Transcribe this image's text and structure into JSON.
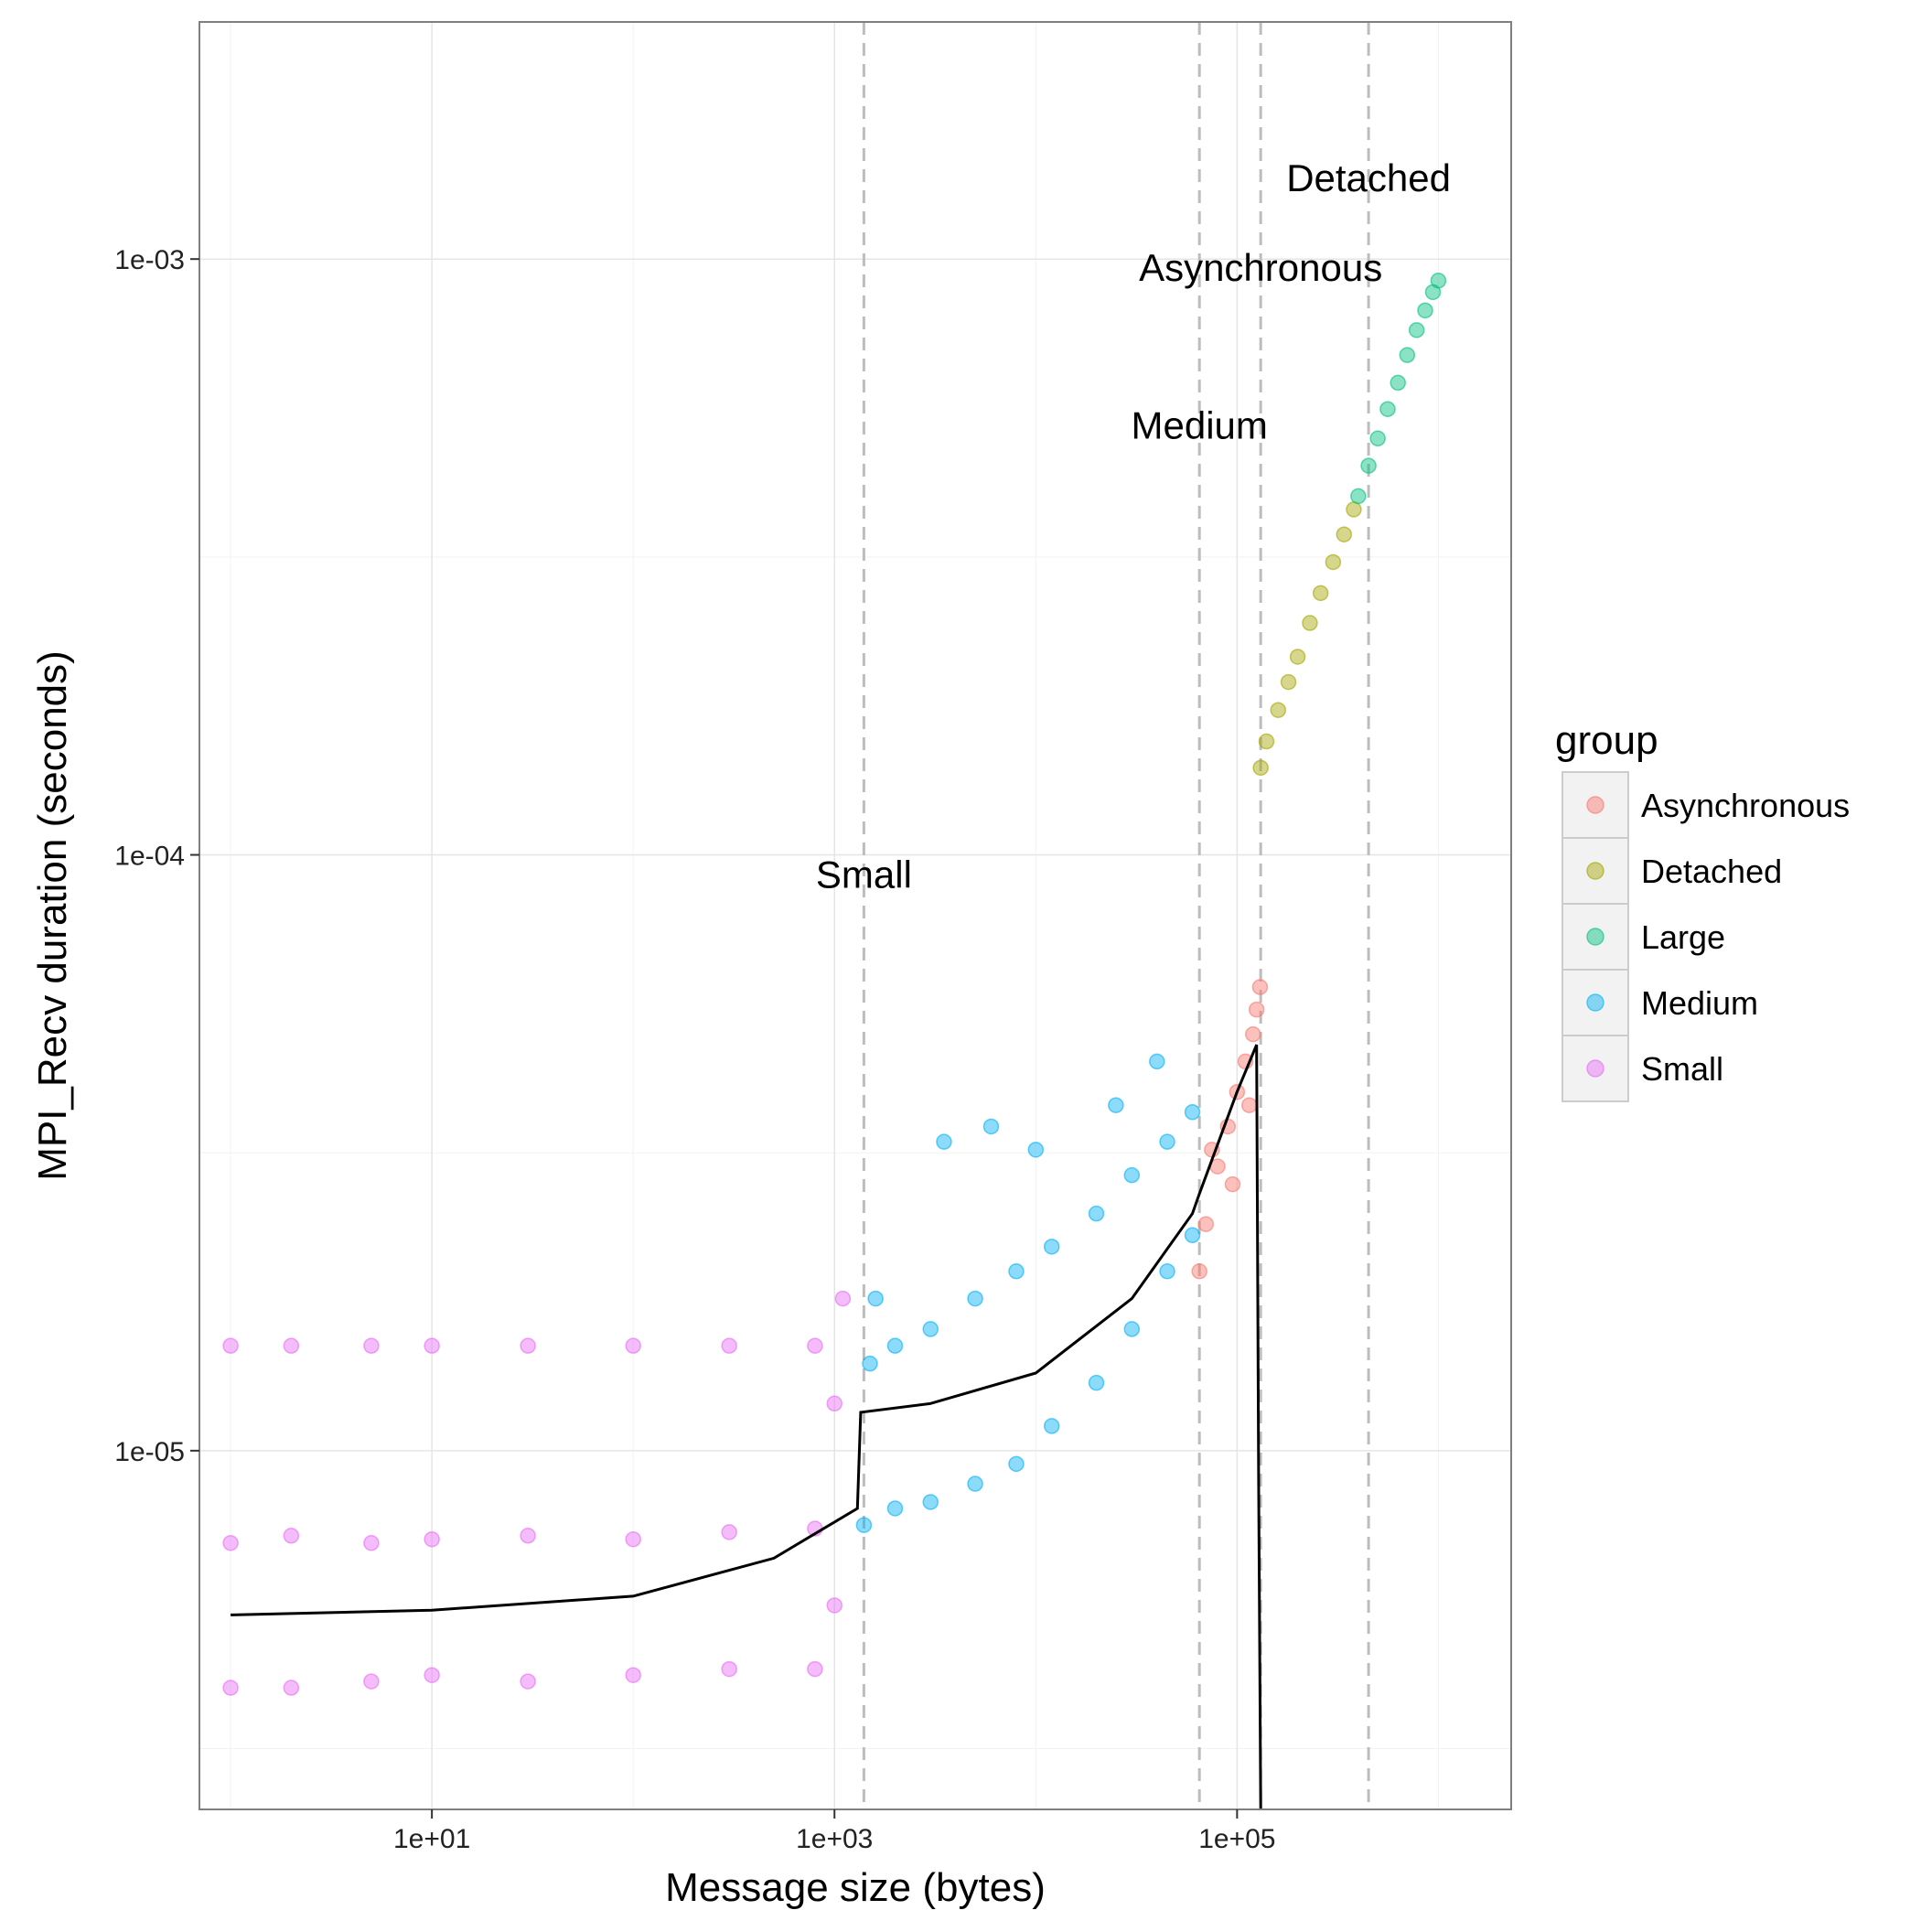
{
  "chart_data": {
    "type": "scatter",
    "x_scale": "log10",
    "y_scale": "log10",
    "xlim": [
      0.7,
      2300000
    ],
    "ylim": [
      2.5e-06,
      0.0025
    ],
    "xlabel": "Message size (bytes)",
    "ylabel": "MPI_Recv duration (seconds)",
    "x_ticks": [
      {
        "value": 10,
        "label": "1e+01"
      },
      {
        "value": 1000,
        "label": "1e+03"
      },
      {
        "value": 100000,
        "label": "1e+05"
      }
    ],
    "y_ticks": [
      {
        "value": 1e-05,
        "label": "1e-05"
      },
      {
        "value": 0.0001,
        "label": "1e-04"
      },
      {
        "value": 0.001,
        "label": "1e-03"
      }
    ],
    "grid": true,
    "legend": {
      "title": "group",
      "position": "right",
      "entries": [
        "Asynchronous",
        "Detached",
        "Large",
        "Medium",
        "Small"
      ]
    },
    "series": [
      {
        "name": "Asynchronous",
        "color": "#F8766D",
        "points": [
          [
            65000,
            2e-05
          ],
          [
            70000,
            2.4e-05
          ],
          [
            80000,
            3e-05
          ],
          [
            90000,
            3.5e-05
          ],
          [
            100000,
            4e-05
          ],
          [
            110000,
            4.5e-05
          ],
          [
            120000,
            5e-05
          ],
          [
            125000,
            5.5e-05
          ],
          [
            130000,
            6e-05
          ],
          [
            75000,
            3.2e-05
          ],
          [
            95000,
            2.8e-05
          ],
          [
            115000,
            3.8e-05
          ]
        ]
      },
      {
        "name": "Detached",
        "color": "#A3A500",
        "points": [
          [
            131000,
            0.00014
          ],
          [
            140000,
            0.000155
          ],
          [
            160000,
            0.000175
          ],
          [
            180000,
            0.000195
          ],
          [
            200000,
            0.000215
          ],
          [
            230000,
            0.000245
          ],
          [
            260000,
            0.000275
          ],
          [
            300000,
            0.00031
          ],
          [
            340000,
            0.000345
          ],
          [
            380000,
            0.00038
          ]
        ]
      },
      {
        "name": "Large",
        "color": "#00BF7D",
        "points": [
          [
            400000,
            0.0004
          ],
          [
            450000,
            0.00045
          ],
          [
            500000,
            0.0005
          ],
          [
            560000,
            0.00056
          ],
          [
            630000,
            0.00062
          ],
          [
            700000,
            0.00069
          ],
          [
            780000,
            0.00076
          ],
          [
            860000,
            0.00082
          ],
          [
            940000,
            0.00088
          ],
          [
            1000000,
            0.00092
          ]
        ]
      },
      {
        "name": "Medium",
        "color": "#00B0F6",
        "points": [
          [
            1400,
            7.5e-06
          ],
          [
            1500,
            1.4e-05
          ],
          [
            1600,
            1.8e-05
          ],
          [
            2000,
            8e-06
          ],
          [
            2000,
            1.5e-05
          ],
          [
            3000,
            8.2e-06
          ],
          [
            3000,
            1.6e-05
          ],
          [
            5000,
            8.8e-06
          ],
          [
            5000,
            1.8e-05
          ],
          [
            8000,
            9.5e-06
          ],
          [
            8000,
            2e-05
          ],
          [
            12000,
            1.1e-05
          ],
          [
            12000,
            2.2e-05
          ],
          [
            20000,
            1.3e-05
          ],
          [
            20000,
            2.5e-05
          ],
          [
            30000,
            1.6e-05
          ],
          [
            30000,
            2.9e-05
          ],
          [
            45000,
            2e-05
          ],
          [
            45000,
            3.3e-05
          ],
          [
            60000,
            2.3e-05
          ],
          [
            60000,
            3.7e-05
          ],
          [
            3500,
            3.3e-05
          ],
          [
            6000,
            3.5e-05
          ],
          [
            10000,
            3.2e-05
          ],
          [
            25000,
            3.8e-05
          ],
          [
            40000,
            4.5e-05
          ]
        ]
      },
      {
        "name": "Small",
        "color": "#E76BF3",
        "points": [
          [
            1,
            4e-06
          ],
          [
            1,
            7e-06
          ],
          [
            1,
            1.5e-05
          ],
          [
            2,
            4e-06
          ],
          [
            2,
            7.2e-06
          ],
          [
            2,
            1.5e-05
          ],
          [
            5,
            4.1e-06
          ],
          [
            5,
            7e-06
          ],
          [
            5,
            1.5e-05
          ],
          [
            10,
            4.2e-06
          ],
          [
            10,
            7.1e-06
          ],
          [
            10,
            1.5e-05
          ],
          [
            30,
            4.1e-06
          ],
          [
            30,
            7.2e-06
          ],
          [
            30,
            1.5e-05
          ],
          [
            100,
            4.2e-06
          ],
          [
            100,
            7.1e-06
          ],
          [
            100,
            1.5e-05
          ],
          [
            300,
            4.3e-06
          ],
          [
            300,
            7.3e-06
          ],
          [
            300,
            1.5e-05
          ],
          [
            800,
            4.3e-06
          ],
          [
            800,
            7.4e-06
          ],
          [
            800,
            1.5e-05
          ],
          [
            1000,
            5.5e-06
          ],
          [
            1000,
            1.2e-05
          ],
          [
            1100,
            1.8e-05
          ]
        ]
      }
    ],
    "fit_line": {
      "color": "#000000",
      "points": [
        [
          1,
          5.3e-06
        ],
        [
          10,
          5.4e-06
        ],
        [
          100,
          5.7e-06
        ],
        [
          500,
          6.6e-06
        ],
        [
          1300,
          8e-06
        ],
        [
          1350,
          1.16e-05
        ],
        [
          3000,
          1.2e-05
        ],
        [
          10000,
          1.35e-05
        ],
        [
          30000,
          1.8e-05
        ],
        [
          60000,
          2.5e-05
        ],
        [
          65000,
          2.7e-05
        ],
        [
          100000,
          4e-05
        ],
        [
          125000,
          4.8e-05
        ],
        [
          128000,
          9e-06
        ],
        [
          131000,
          2.5e-06
        ]
      ]
    },
    "vlines": [
      1400,
      65000,
      131000,
      450000
    ],
    "annotations": [
      {
        "text": "Small",
        "x": 1400,
        "y": 8.8e-05
      },
      {
        "text": "Medium",
        "x": 65000,
        "y": 0.0005
      },
      {
        "text": "Asynchronous",
        "x": 131000,
        "y": 0.00092
      },
      {
        "text": "Detached",
        "x": 450000,
        "y": 0.0013
      }
    ]
  }
}
